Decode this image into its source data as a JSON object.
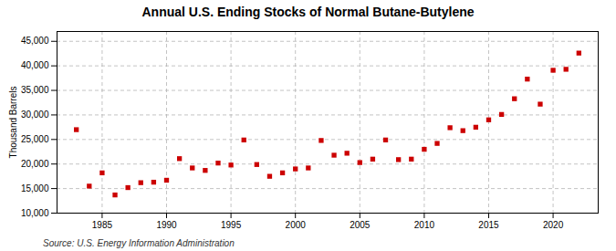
{
  "chart_data": {
    "type": "scatter",
    "title": "Annual U.S. Ending Stocks of Normal Butane-Butylene",
    "ylabel": "Thousand Barrels",
    "source": "Source: U.S. Energy Information Administration",
    "color": "#cc0000",
    "marker": "square",
    "grid": true,
    "x": [
      1983,
      1984,
      1985,
      1986,
      1987,
      1988,
      1989,
      1990,
      1991,
      1992,
      1993,
      1994,
      1995,
      1996,
      1997,
      1998,
      1999,
      2000,
      2001,
      2002,
      2003,
      2004,
      2005,
      2006,
      2007,
      2008,
      2009,
      2010,
      2011,
      2012,
      2013,
      2014,
      2015,
      2016,
      2017,
      2018,
      2019,
      2020,
      2021,
      2022
    ],
    "values": [
      27000,
      15500,
      18200,
      13700,
      15200,
      16200,
      16300,
      16700,
      21100,
      19200,
      18700,
      20200,
      19800,
      24900,
      19900,
      17500,
      18200,
      19000,
      19200,
      24800,
      21800,
      22200,
      20300,
      21000,
      24900,
      20900,
      21000,
      23000,
      24200,
      27400,
      26800,
      27500,
      29000,
      30100,
      33300,
      37300,
      32200,
      39100,
      39300,
      42600
    ],
    "xlim": [
      1981.5,
      2023.5
    ],
    "xticks": [
      1985,
      1990,
      1995,
      2000,
      2005,
      2010,
      2015,
      2020
    ],
    "ylim": [
      10000,
      47000
    ],
    "yticks": [
      {
        "value": 10000,
        "label": "10,000"
      },
      {
        "value": 15000,
        "label": "15,000"
      },
      {
        "value": 20000,
        "label": "20,000"
      },
      {
        "value": 25000,
        "label": "25,000"
      },
      {
        "value": 30000,
        "label": "30,000"
      },
      {
        "value": 35000,
        "label": "35,000"
      },
      {
        "value": 40000,
        "label": "40,000"
      },
      {
        "value": 45000,
        "label": "45,000"
      }
    ]
  }
}
